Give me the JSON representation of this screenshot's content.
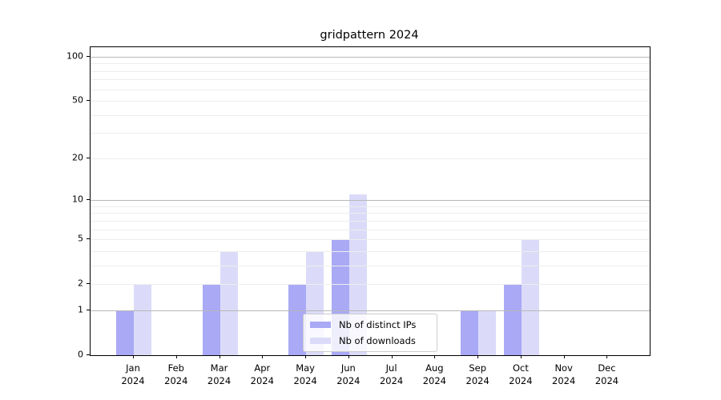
{
  "chart_data": {
    "type": "bar",
    "title": "gridpattern 2024",
    "categories": [
      {
        "month": "Jan",
        "year": "2024"
      },
      {
        "month": "Feb",
        "year": "2024"
      },
      {
        "month": "Mar",
        "year": "2024"
      },
      {
        "month": "Apr",
        "year": "2024"
      },
      {
        "month": "May",
        "year": "2024"
      },
      {
        "month": "Jun",
        "year": "2024"
      },
      {
        "month": "Jul",
        "year": "2024"
      },
      {
        "month": "Aug",
        "year": "2024"
      },
      {
        "month": "Sep",
        "year": "2024"
      },
      {
        "month": "Oct",
        "year": "2024"
      },
      {
        "month": "Nov",
        "year": "2024"
      },
      {
        "month": "Dec",
        "year": "2024"
      }
    ],
    "series": [
      {
        "name": "Nb of distinct IPs",
        "color": "#a9a9f6",
        "values": [
          1,
          0,
          2,
          0,
          2,
          5,
          0,
          0,
          1,
          2,
          0,
          0
        ]
      },
      {
        "name": "Nb of downloads",
        "color": "#dbdbf9",
        "values": [
          2,
          0,
          4,
          0,
          4,
          11,
          0,
          0,
          1,
          5,
          0,
          0
        ]
      }
    ],
    "xlabel": "",
    "ylabel": "",
    "y_axis": {
      "scale": "log1p",
      "ylim": [
        0,
        116
      ],
      "tick_values": [
        0,
        1,
        2,
        5,
        10,
        20,
        50,
        100
      ],
      "tick_labels": [
        "0",
        "1",
        "2",
        "5",
        "10",
        "20",
        "50",
        "100"
      ],
      "major_gridline_values": [
        1,
        10,
        100
      ],
      "minor_gridline_values": [
        2,
        3,
        4,
        5,
        6,
        7,
        8,
        9,
        20,
        30,
        40,
        50,
        60,
        70,
        80,
        90
      ]
    },
    "grid": true,
    "gridlines_above_bars": true,
    "legend_position": "lower center",
    "colors": {
      "major_grid": "#b8b8b8",
      "minor_grid": "#ededed",
      "axis": "#000000",
      "legend_border": "#cccccc"
    }
  }
}
